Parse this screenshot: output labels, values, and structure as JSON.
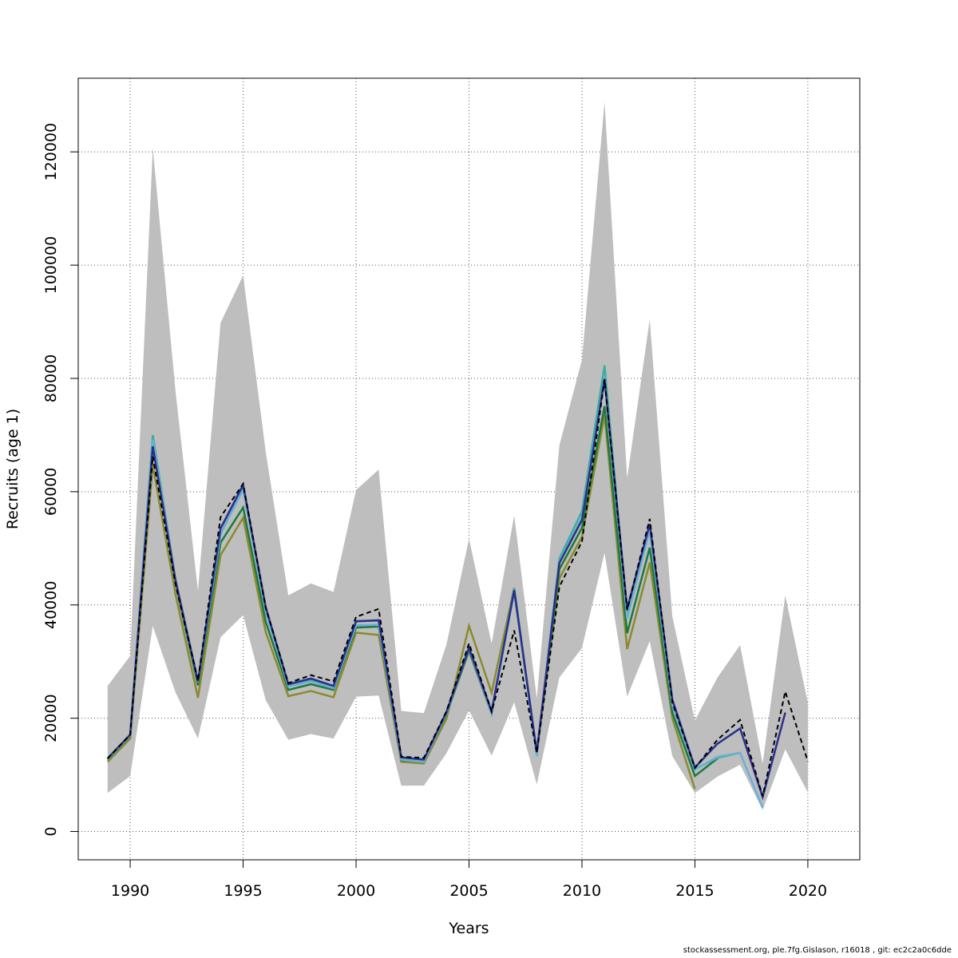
{
  "footer": "stockassessment.org, ple.7fg.Gislason, r16018 , git: ec2c2a0c6dde",
  "chart_data": {
    "type": "line",
    "title": "",
    "xlabel": "Years",
    "ylabel": "Recruits (age 1)",
    "xlim": [
      1987.7,
      2022.3
    ],
    "ylim": [
      -5000,
      133000
    ],
    "x_ticks": [
      1990,
      1995,
      2000,
      2005,
      2010,
      2015,
      2020
    ],
    "y_ticks": [
      0,
      20000,
      40000,
      60000,
      80000,
      100000,
      120000
    ],
    "grid": true,
    "confidence_band": {
      "color": "#bebebe",
      "x": [
        1989,
        1990,
        1991,
        1992,
        1993,
        1994,
        1995,
        1996,
        1997,
        1998,
        1999,
        2000,
        2001,
        2002,
        2003,
        2004,
        2005,
        2006,
        2007,
        2008,
        2009,
        2010,
        2011,
        2012,
        2013,
        2014,
        2015,
        2016,
        2017,
        2018,
        2019,
        2020
      ],
      "upper": [
        25700,
        31000,
        120700,
        78000,
        42500,
        89800,
        98200,
        67000,
        41700,
        43800,
        42300,
        60300,
        63900,
        21300,
        20900,
        33000,
        51700,
        33200,
        55800,
        23500,
        68200,
        83300,
        128800,
        62400,
        90400,
        38000,
        19600,
        27200,
        32900,
        12000,
        41700,
        22700
      ],
      "lower": [
        6800,
        9800,
        36300,
        24600,
        16400,
        34300,
        38200,
        23200,
        16200,
        17200,
        16400,
        23800,
        24000,
        8100,
        8100,
        13800,
        21400,
        13400,
        22800,
        8300,
        27200,
        32400,
        49200,
        23800,
        33600,
        13300,
        6800,
        9700,
        11800,
        3800,
        14500,
        6900
      ]
    },
    "series": [
      {
        "color": "#000000",
        "dashed": true,
        "x": [
          1989,
          1990,
          1991,
          1992,
          1993,
          1994,
          1995,
          1996,
          1997,
          1998,
          1999,
          2000,
          2001,
          2002,
          2003,
          2004,
          2005,
          2006,
          2007,
          2008,
          2009,
          2010,
          2011,
          2012,
          2013,
          2014,
          2015,
          2016,
          2017,
          2018,
          2019,
          2020
        ],
        "values": [
          12900,
          17100,
          66200,
          43800,
          26600,
          55500,
          61400,
          39500,
          26200,
          27600,
          26500,
          37900,
          39300,
          13200,
          13000,
          21200,
          33200,
          21200,
          35500,
          13900,
          43200,
          51200,
          79800,
          39100,
          55200,
          22800,
          11200,
          16200,
          19700,
          6200,
          24700,
          12400
        ]
      },
      {
        "color": "#2b2f8c",
        "x": [
          1989,
          1990,
          1991,
          1992,
          1993,
          1994,
          1995,
          1996,
          1997,
          1998,
          1999,
          2000,
          2001,
          2002,
          2003,
          2004,
          2005,
          2006,
          2007,
          2008,
          2009,
          2010,
          2011,
          2012,
          2013,
          2014,
          2015,
          2016,
          2017,
          2018,
          2019
        ],
        "values": [
          12900,
          17100,
          68000,
          44500,
          26500,
          53500,
          61200,
          39600,
          26000,
          27000,
          25700,
          37100,
          37300,
          13100,
          12700,
          21100,
          32400,
          21200,
          42600,
          14000,
          47400,
          55000,
          79900,
          39300,
          54300,
          23300,
          11300,
          15500,
          18200,
          6100,
          21000
        ]
      },
      {
        "color": "#6ab0d6",
        "x": [
          1989,
          1990,
          1991,
          1992,
          1993,
          1994,
          1995,
          1996,
          1997,
          1998,
          1999,
          2000,
          2001,
          2002,
          2003,
          2004,
          2005,
          2006,
          2007,
          2008,
          2009,
          2010,
          2011,
          2012,
          2013,
          2014,
          2015,
          2016,
          2017,
          2018
        ],
        "values": [
          12800,
          17000,
          69200,
          44300,
          26400,
          52500,
          60400,
          38800,
          25600,
          26500,
          25300,
          36400,
          36500,
          12700,
          12300,
          20900,
          32300,
          20800,
          42300,
          13300,
          47700,
          55400,
          80200,
          37600,
          53200,
          22300,
          10900,
          13200,
          13900,
          4200
        ]
      },
      {
        "color": "#3aada0",
        "x": [
          1989,
          1990,
          1991,
          1992,
          1993,
          1994,
          1995,
          1996,
          1997,
          1998,
          1999,
          2000,
          2001,
          2002,
          2003,
          2004,
          2005,
          2006,
          2007,
          2008,
          2009,
          2010,
          2011,
          2012,
          2013,
          2014,
          2015,
          2016,
          2017
        ],
        "values": [
          12800,
          17000,
          70000,
          44600,
          26300,
          52500,
          60800,
          38800,
          25700,
          26700,
          25500,
          37200,
          37200,
          12900,
          12500,
          21000,
          32500,
          21000,
          42900,
          13700,
          48200,
          56500,
          82300,
          38200,
          54200,
          22400,
          11000,
          13000,
          13900
        ]
      },
      {
        "color": "#1a7a3c",
        "x": [
          1989,
          1990,
          1991,
          1992,
          1993,
          1994,
          1995,
          1996,
          1997,
          1998,
          1999,
          2000,
          2001,
          2002,
          2003,
          2004,
          2005,
          2006,
          2007,
          2008,
          2009,
          2010,
          2011,
          2012,
          2013,
          2014,
          2015,
          2016
        ],
        "values": [
          12700,
          16900,
          68800,
          44000,
          25800,
          51000,
          57200,
          37000,
          25000,
          26000,
          25000,
          36000,
          36200,
          12600,
          12400,
          20700,
          31900,
          20800,
          42800,
          13600,
          46300,
          53600,
          75100,
          35000,
          50100,
          21000,
          9800,
          12900
        ]
      },
      {
        "color": "#8a8a2e",
        "x": [
          1989,
          1990,
          1991,
          1992,
          1993,
          1994,
          1995,
          1996,
          1997,
          1998,
          1999,
          2000,
          2001,
          2002,
          2003,
          2004,
          2005,
          2006,
          2007,
          2008,
          2009,
          2010,
          2011,
          2012,
          2013,
          2014,
          2015
        ],
        "values": [
          12300,
          16400,
          64700,
          42000,
          23600,
          48800,
          55400,
          35200,
          23900,
          24800,
          23700,
          35100,
          34700,
          12300,
          12000,
          19900,
          36300,
          24500,
          43000,
          13900,
          44700,
          52000,
          73500,
          32200,
          47500,
          20000,
          7500
        ]
      }
    ]
  }
}
